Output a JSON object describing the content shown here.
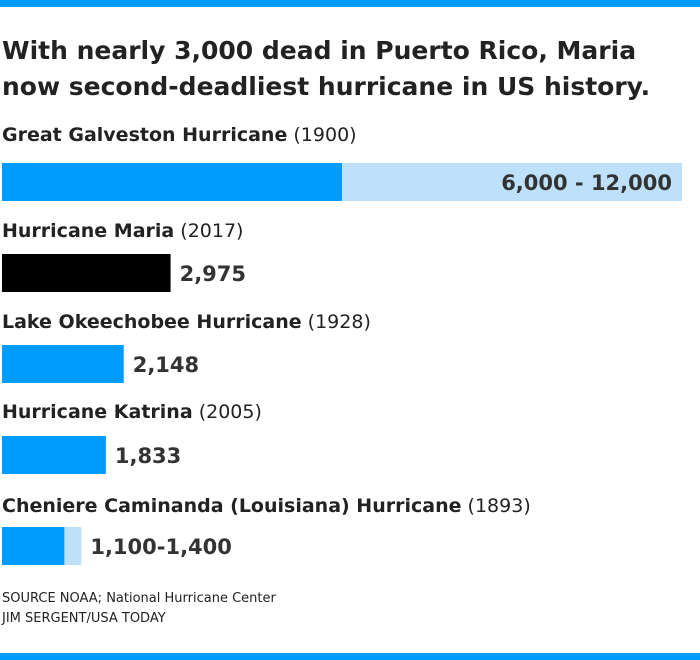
{
  "title": "With nearly 3,000 dead in Puerto Rico, Maria now second-deadliest hurricane in US history.",
  "source": "SOURCE NOAA; National Hurricane Center",
  "credit": "JIM SERGENT/USA TODAY",
  "colors": {
    "accent": "#009bff",
    "range": "#bde0fb",
    "highlight": "#000000",
    "text": "#222222"
  },
  "chart_data": {
    "type": "bar",
    "orientation": "horizontal",
    "categories": [
      {
        "name": "Great Galveston Hurricane",
        "year": "(1900)"
      },
      {
        "name": "Hurricane Maria",
        "year": "(2017)"
      },
      {
        "name": "Lake Okeechobee Hurricane",
        "year": "(1928)"
      },
      {
        "name": "Hurricane Katrina",
        "year": "(2005)"
      },
      {
        "name": "Cheniere Caminanda (Louisiana) Hurricane",
        "year": "(1893)"
      }
    ],
    "min_values": [
      6000,
      2975,
      2148,
      1833,
      1100
    ],
    "max_values": [
      12000,
      2975,
      2148,
      1833,
      1400
    ],
    "value_labels": [
      "6,000 - 12,000",
      "2,975",
      "2,148",
      "1,833",
      "1,100-1,400"
    ],
    "highlight_index": 1,
    "xlim": [
      0,
      12000
    ],
    "grid": false
  }
}
